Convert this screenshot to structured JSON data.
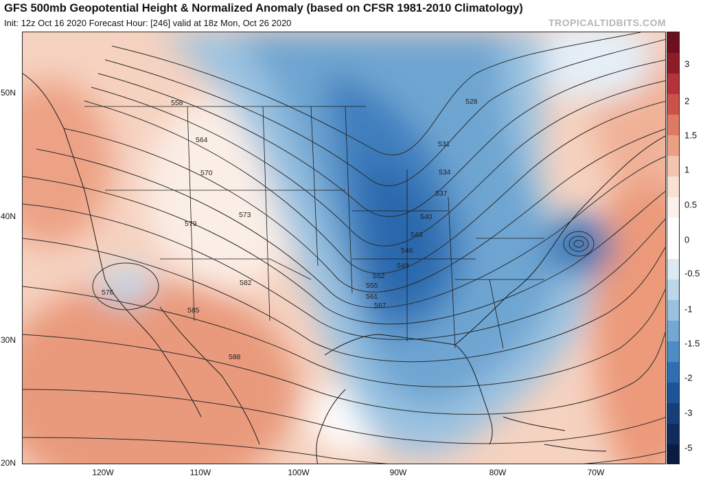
{
  "header": {
    "title": "GFS 500mb Geopotential Height & Normalized Anomaly (based on CFSR 1981-2010 Climatology)",
    "subtitle": "Init: 12z Oct 16 2020   Forecast Hour: [246]   valid at 18z Mon, Oct 26 2020",
    "credit": "TROPICALTIDBITS.COM"
  },
  "axes": {
    "lat_labels": [
      "50N",
      "40N",
      "30N",
      "20N"
    ],
    "lon_labels": [
      "120W",
      "110W",
      "100W",
      "90W",
      "80W",
      "70W"
    ]
  },
  "colorbar": {
    "labels": [
      "3",
      "2",
      "1.5",
      "1",
      "0.5",
      "0",
      "-0.5",
      "-1",
      "-1.5",
      "-2",
      "-3",
      "-5"
    ],
    "colors": [
      "#6e0f1e",
      "#8e1c27",
      "#b4323a",
      "#cc5249",
      "#de7a62",
      "#eb9f84",
      "#f3c4ae",
      "#f8e0d2",
      "#fcf2ec",
      "#ffffff",
      "#ffffff",
      "#dce9f3",
      "#bcd6ea",
      "#98c1e0",
      "#72a8d3",
      "#4d8cc4",
      "#2e6eb3",
      "#1d5497",
      "#163f7a",
      "#102c5d",
      "#0b1c42"
    ]
  },
  "contours": [
    {
      "label": "528"
    },
    {
      "label": "531"
    },
    {
      "label": "534"
    },
    {
      "label": "537"
    },
    {
      "label": "540"
    },
    {
      "label": "543"
    },
    {
      "label": "546"
    },
    {
      "label": "549"
    },
    {
      "label": "552"
    },
    {
      "label": "555"
    },
    {
      "label": "558"
    },
    {
      "label": "561"
    },
    {
      "label": "564"
    },
    {
      "label": "567"
    },
    {
      "label": "570"
    },
    {
      "label": "573"
    },
    {
      "label": "576"
    },
    {
      "label": "579"
    },
    {
      "label": "582"
    },
    {
      "label": "585"
    },
    {
      "label": "588"
    }
  ],
  "colors": {
    "warm": "#f0b49c",
    "cool": "#4d8cc4",
    "deep_cool": "#1d5497",
    "neutral": "#ffffff"
  }
}
